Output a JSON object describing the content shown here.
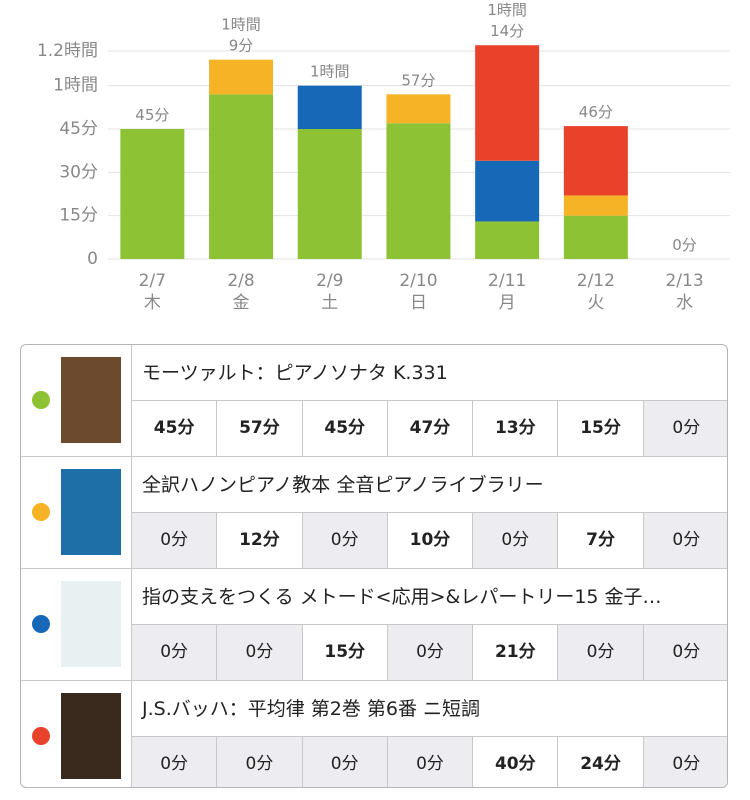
{
  "chart_data": {
    "type": "stacked-bar",
    "categories": [
      "2/7",
      "2/8",
      "2/9",
      "2/10",
      "2/11",
      "2/12",
      "2/13"
    ],
    "weekdays": [
      "木",
      "金",
      "土",
      "日",
      "月",
      "火",
      "水"
    ],
    "ylim": [
      0,
      72
    ],
    "yticks": [
      0,
      {
        "value": 15,
        "label": "15分"
      },
      {
        "value": 30,
        "label": "30分"
      },
      {
        "value": 45,
        "label": "45分"
      },
      {
        "value": 60,
        "label": "1時間"
      },
      {
        "value": 72,
        "label": "1.2時間"
      }
    ],
    "grid": true,
    "totals": [
      45,
      69,
      60,
      57,
      74,
      46,
      0
    ],
    "total_labels": [
      "45分",
      "1時間\n9分",
      "1時間",
      "57分",
      "1時間\n14分",
      "46分",
      "0分"
    ],
    "series": [
      {
        "name": "モーツァルト：ピアノソナタ K.331",
        "color": "#8dc234",
        "values": [
          45,
          57,
          45,
          47,
          13,
          15,
          0
        ],
        "value_labels": [
          "45分",
          "57分",
          "45分",
          "47分",
          "13分",
          "15分",
          "0分"
        ]
      },
      {
        "name": "全訳ハノンピアノ教本  全音ピアノライブラリー",
        "color": "#f6b325",
        "values": [
          0,
          12,
          0,
          10,
          0,
          7,
          0
        ],
        "value_labels": [
          "0分",
          "12分",
          "0分",
          "10分",
          "0分",
          "7分",
          "0分"
        ]
      },
      {
        "name": "指の支えをつくる メトード<応用>&レパートリー15 金子…",
        "color": "#1769b7",
        "values": [
          0,
          0,
          15,
          0,
          21,
          0,
          0
        ],
        "value_labels": [
          "0分",
          "0分",
          "15分",
          "0分",
          "21分",
          "0分",
          "0分"
        ]
      },
      {
        "name": "J.S.バッハ：平均律 第2巻 第6番 ニ短調",
        "color": "#e8432a",
        "values": [
          0,
          0,
          0,
          0,
          40,
          24,
          0
        ],
        "value_labels": [
          "0分",
          "0分",
          "0分",
          "0分",
          "40分",
          "24分",
          "0分"
        ]
      }
    ]
  }
}
